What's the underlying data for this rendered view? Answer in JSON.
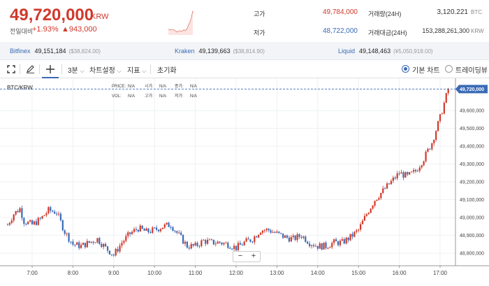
{
  "header": {
    "price": "49,720,000",
    "unit": "KRW",
    "change_label": "전일대비",
    "change_pct": "+1.93%",
    "change_amt": "▲943,000",
    "colors": {
      "up": "#d0392b",
      "down": "#3a6ab5"
    },
    "stats": {
      "high_label": "고가",
      "high_value": "49,784,000",
      "low_label": "저가",
      "low_value": "48,722,000",
      "volume_label": "거래량(24H)",
      "volume_value": "3,120.221",
      "volume_unit": "BTC",
      "amount_label": "거래대금(24H)",
      "amount_value": "153,288,261,300",
      "amount_unit": "KRW"
    }
  },
  "exchanges": [
    {
      "name": "Bitfinex",
      "price": "49,151,184",
      "usd": "($38,824.00)"
    },
    {
      "name": "Kraken",
      "price": "49,139,663",
      "usd": "($38,814.90)"
    },
    {
      "name": "Liquid",
      "price": "49,148,463",
      "usd": "(¥5,050,918.00)"
    }
  ],
  "toolbar": {
    "fullscreen_icon": "fullscreen-icon",
    "draw_icon": "pencil-icon",
    "crosshair_icon": "crosshair-icon",
    "interval": "3분",
    "chart_settings": "차트설정",
    "indicators": "지표",
    "reset": "초기화",
    "basic_chart": "기본 차트",
    "tradingview": "트레이딩뷰"
  },
  "chart": {
    "pair": "BTC/KRW",
    "legend": {
      "price_label": "PRICE:",
      "price_val": "N/A",
      "open_label": "시가:",
      "open_val": "N/A",
      "close_label": "종가:",
      "close_val": "N/A",
      "vol_label": "VOL:",
      "vol_val": "N/A",
      "high_label": "고가:",
      "high_val": "N/A",
      "low_label": "저가:",
      "low_val": "N/A"
    },
    "current_price_label": "49,720,000",
    "zoom_out": "−",
    "zoom_in": "+"
  },
  "chart_data": {
    "type": "candlestick",
    "x_ticks": [
      "7:00",
      "8:00",
      "9:00",
      "10:00",
      "11:00",
      "12:00",
      "13:00",
      "14:00",
      "15:00",
      "16:00",
      "17:00"
    ],
    "y_ticks": [
      "48,800,000",
      "48,900,000",
      "49,000,000",
      "49,100,000",
      "49,200,000",
      "49,300,000",
      "49,400,000",
      "49,500,000",
      "49,600,000"
    ],
    "ylim": [
      48730000,
      49780000
    ],
    "current_price": 49720000,
    "close_path": [
      [
        6.4,
        48960000
      ],
      [
        6.55,
        49020000
      ],
      [
        6.7,
        49050000
      ],
      [
        6.8,
        48980000
      ],
      [
        7.0,
        48960000
      ],
      [
        7.2,
        48990000
      ],
      [
        7.4,
        49040000
      ],
      [
        7.6,
        49030000
      ],
      [
        7.8,
        48920000
      ],
      [
        8.0,
        48850000
      ],
      [
        8.2,
        48840000
      ],
      [
        8.4,
        48860000
      ],
      [
        8.6,
        48880000
      ],
      [
        8.8,
        48830000
      ],
      [
        9.0,
        48790000
      ],
      [
        9.2,
        48860000
      ],
      [
        9.4,
        48910000
      ],
      [
        9.6,
        48940000
      ],
      [
        9.8,
        48920000
      ],
      [
        10.0,
        48930000
      ],
      [
        10.2,
        48950000
      ],
      [
        10.4,
        48960000
      ],
      [
        10.6,
        48900000
      ],
      [
        10.8,
        48840000
      ],
      [
        11.0,
        48840000
      ],
      [
        11.2,
        48870000
      ],
      [
        11.4,
        48860000
      ],
      [
        11.6,
        48860000
      ],
      [
        11.8,
        48850000
      ],
      [
        12.0,
        48830000
      ],
      [
        12.2,
        48860000
      ],
      [
        12.4,
        48880000
      ],
      [
        12.6,
        48930000
      ],
      [
        12.8,
        48930000
      ],
      [
        13.0,
        48910000
      ],
      [
        13.2,
        48890000
      ],
      [
        13.4,
        48880000
      ],
      [
        13.6,
        48900000
      ],
      [
        13.8,
        48860000
      ],
      [
        14.0,
        48840000
      ],
      [
        14.2,
        48840000
      ],
      [
        14.4,
        48860000
      ],
      [
        14.6,
        48860000
      ],
      [
        14.8,
        48890000
      ],
      [
        15.0,
        48930000
      ],
      [
        15.2,
        49020000
      ],
      [
        15.4,
        49100000
      ],
      [
        15.6,
        49150000
      ],
      [
        15.8,
        49200000
      ],
      [
        16.0,
        49250000
      ],
      [
        16.2,
        49230000
      ],
      [
        16.4,
        49260000
      ],
      [
        16.6,
        49330000
      ],
      [
        16.8,
        49420000
      ],
      [
        17.0,
        49560000
      ],
      [
        17.1,
        49640000
      ],
      [
        17.2,
        49720000
      ]
    ]
  }
}
